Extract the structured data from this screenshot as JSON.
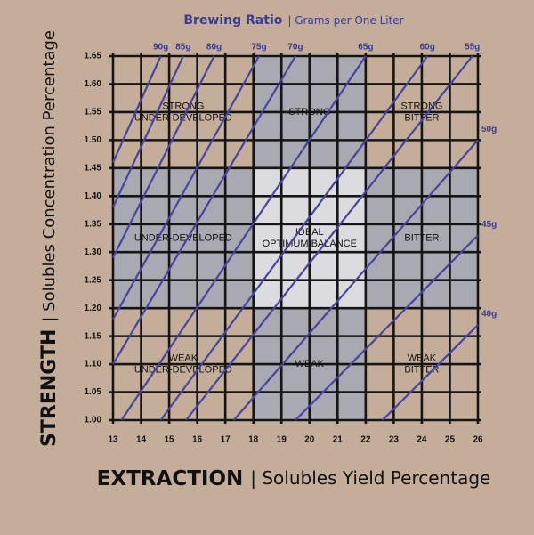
{
  "chart_data": {
    "type": "line",
    "title": {
      "bold": "Brewing Ratio",
      "rest": "| Grams per One Liter"
    },
    "x_label": {
      "bold": "EXTRACTION",
      "rest": "| Solubles Yield Percentage"
    },
    "y_label": {
      "bold": "STRENGTH",
      "rest": "| Solubles Concentration Percentage"
    },
    "xlim": [
      13,
      26
    ],
    "ylim": [
      1.0,
      1.65
    ],
    "xticks": [
      13,
      14,
      15,
      16,
      17,
      18,
      19,
      20,
      21,
      22,
      23,
      24,
      25,
      26
    ],
    "yticks": [
      {
        "value": 1.0,
        "label": "1.00"
      },
      1.05,
      {
        "value": 1.1,
        "label": "1.10"
      },
      1.15,
      {
        "value": 1.2,
        "label": "1.20"
      },
      1.25,
      {
        "value": 1.3,
        "label": "1.30"
      },
      1.35,
      {
        "value": 1.4,
        "label": "1.40"
      },
      1.45,
      {
        "value": 1.5,
        "label": "1.50"
      },
      1.55,
      {
        "value": 1.6,
        "label": "1.60"
      },
      1.65
    ],
    "grid": true,
    "zones": [
      {
        "label": [
          "STRONG",
          "UNDER-DEVELOPED"
        ],
        "x": [
          13,
          18
        ],
        "y": [
          1.45,
          1.65
        ],
        "color": "#c5ae99"
      },
      {
        "label": [
          "STRONG"
        ],
        "x": [
          18,
          22
        ],
        "y": [
          1.45,
          1.65
        ],
        "color": "#a8a9b1"
      },
      {
        "label": [
          "STRONG",
          "BITTER"
        ],
        "x": [
          22,
          26
        ],
        "y": [
          1.45,
          1.65
        ],
        "color": "#c5ae99"
      },
      {
        "label": [
          "UNDER-DEVELOPED"
        ],
        "x": [
          13,
          18
        ],
        "y": [
          1.2,
          1.45
        ],
        "color": "#a8a9b1"
      },
      {
        "label": [
          "IDEAL",
          "OPTIMUM BALANCE"
        ],
        "x": [
          18,
          22
        ],
        "y": [
          1.2,
          1.45
        ],
        "color": "#dcdcdf"
      },
      {
        "label": [
          "BITTER"
        ],
        "x": [
          22,
          26
        ],
        "y": [
          1.2,
          1.45
        ],
        "color": "#a8a9b1"
      },
      {
        "label": [
          "WEAK",
          "UNDER-DEVELOPED"
        ],
        "x": [
          13,
          18
        ],
        "y": [
          1.0,
          1.2
        ],
        "color": "#c5ae99"
      },
      {
        "label": [
          "WEAK"
        ],
        "x": [
          18,
          22
        ],
        "y": [
          1.0,
          1.2
        ],
        "color": "#a8a9b1"
      },
      {
        "label": [
          "WEAK",
          "BITTER"
        ],
        "x": [
          22,
          26
        ],
        "y": [
          1.0,
          1.2
        ],
        "color": "#c5ae99"
      }
    ],
    "color": "#4545a0",
    "series": [
      {
        "name": "90g",
        "x": [
          13,
          14.7
        ],
        "values": [
          1.46,
          1.65
        ]
      },
      {
        "name": "85g",
        "x": [
          13,
          15.5
        ],
        "values": [
          1.38,
          1.65
        ]
      },
      {
        "name": "80g",
        "x": [
          13,
          16.6
        ],
        "values": [
          1.29,
          1.65
        ]
      },
      {
        "name": "75g",
        "x": [
          13,
          18.2
        ],
        "values": [
          1.18,
          1.65
        ]
      },
      {
        "name": "70g",
        "x": [
          13,
          19.5
        ],
        "values": [
          1.1,
          1.65
        ]
      },
      {
        "name": "65g",
        "x": [
          13.3,
          22.0
        ],
        "values": [
          1.0,
          1.65
        ]
      },
      {
        "name": "60g",
        "x": [
          14.7,
          24.2
        ],
        "values": [
          1.0,
          1.65
        ]
      },
      {
        "name": "55g",
        "x": [
          15.6,
          25.8
        ],
        "values": [
          1.0,
          1.65
        ]
      },
      {
        "name": "50g",
        "x": [
          17.3,
          26
        ],
        "values": [
          1.0,
          1.5
        ]
      },
      {
        "name": "45g",
        "x": [
          19.5,
          26
        ],
        "values": [
          1.0,
          1.33
        ]
      },
      {
        "name": "40g",
        "x": [
          22.6,
          26
        ],
        "values": [
          1.0,
          1.17
        ]
      }
    ]
  }
}
